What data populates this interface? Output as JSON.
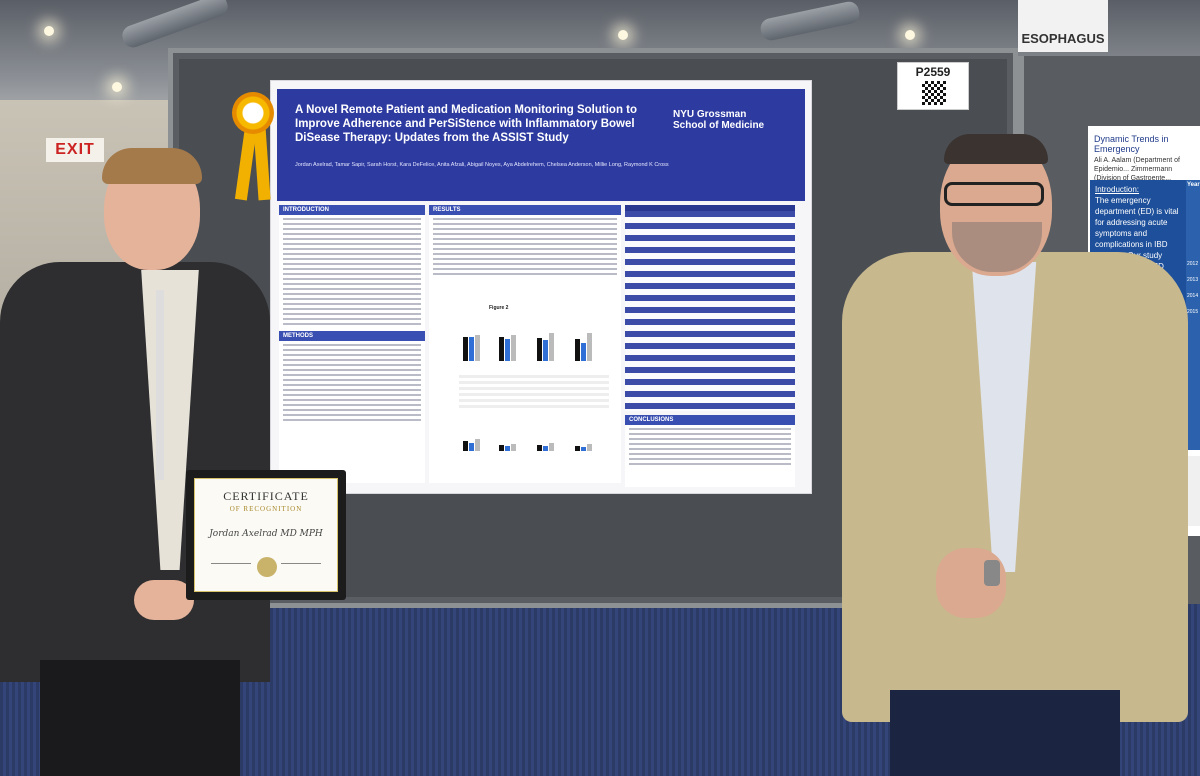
{
  "signs": {
    "exit": "EXIT",
    "section": "ESOPHAGUS",
    "board_number": "P2559"
  },
  "poster": {
    "title": "A Novel Remote Patient and Medication Monitoring Solution to Improve Adherence and PerSiStence with Inflammatory Bowel DiSease Therapy: Updates from the ASSIST Study",
    "institution_logo": "NYU Grossman School of Medicine",
    "authors": "Jordan Axelrad, Tamar Sapir, Sarah Horst, Kara DeFelice, Anita Afzali, Abigail Noyes, Aya Abdelrehem, Chelsea Anderson, Millie Long, Raymond K Cross",
    "sections": {
      "introduction": "INTRODUCTION",
      "methods": "METHODS",
      "results": "RESULTS",
      "conclusions": "CONCLUSIONS"
    },
    "figure_label": "Figure 2"
  },
  "right_poster": {
    "title": "Dynamic Trends in Emergency",
    "authors": "Ali A. Aalam (Department of Epidemio... Zimmermann (Division of Gastroente...",
    "intro_heading": "Introduction:",
    "intro_text": "The emergency department (ED) is vital for addressing acute symptoms and complications in IBD patients. Our study aims to analyze ED trends, including IBD-related visits and subsequent GI procedures, informing",
    "year_header": "Year",
    "years": [
      "2012",
      "2013",
      "2014",
      "2015"
    ]
  },
  "certificate": {
    "title": "CERTIFICATE",
    "subtitle": "OF RECOGNITION",
    "recipient": "Jordan Axelrad MD MPH"
  },
  "colors": {
    "poster_header": "#2d3aa0",
    "section_head": "#3a4fb2",
    "rosette": "#f7b800",
    "carpet": "#2c3a66"
  }
}
